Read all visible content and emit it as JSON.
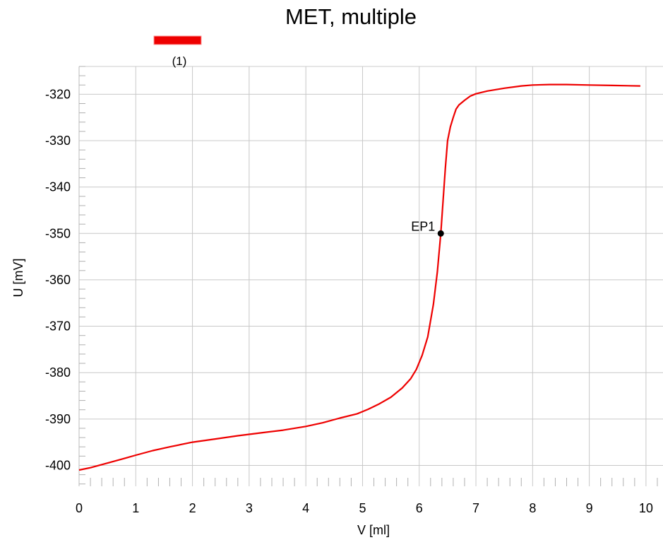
{
  "chart_data": {
    "type": "line",
    "title": "MET, multiple",
    "xlabel": "V [ml]",
    "ylabel": "U [mV]",
    "xlim": [
      0,
      10.3
    ],
    "ylim": [
      -404.5,
      -314
    ],
    "xticks": [
      0,
      1,
      2,
      3,
      4,
      5,
      6,
      7,
      8,
      9,
      10
    ],
    "yticks": [
      -400,
      -390,
      -380,
      -370,
      -360,
      -350,
      -340,
      -330,
      -320
    ],
    "grid": true,
    "legend_position": "top-left",
    "series": [
      {
        "name": "(1)",
        "color": "#ee0000",
        "x": [
          0,
          0.2,
          0.5,
          0.8,
          1.0,
          1.3,
          1.6,
          2.0,
          2.4,
          2.8,
          3.2,
          3.6,
          4.0,
          4.3,
          4.6,
          4.9,
          5.1,
          5.3,
          5.5,
          5.7,
          5.85,
          5.95,
          6.05,
          6.15,
          6.25,
          6.32,
          6.38,
          6.42,
          6.46,
          6.5,
          6.55,
          6.6,
          6.65,
          6.7,
          6.8,
          6.9,
          7.0,
          7.2,
          7.5,
          7.8,
          8.0,
          8.3,
          8.6,
          9.0,
          9.4,
          9.9
        ],
        "y": [
          -401,
          -400.5,
          -399.5,
          -398.5,
          -397.8,
          -396.8,
          -396,
          -395,
          -394.3,
          -393.6,
          -393,
          -392.4,
          -391.6,
          -390.8,
          -389.8,
          -388.9,
          -387.9,
          -386.7,
          -385.3,
          -383.3,
          -381.3,
          -379.3,
          -376.3,
          -372.3,
          -365.3,
          -358.3,
          -350,
          -343,
          -336,
          -330,
          -327,
          -325,
          -323.2,
          -322.3,
          -321.3,
          -320.4,
          -319.9,
          -319.3,
          -318.7,
          -318.2,
          -318.0,
          -317.9,
          -317.9,
          -318.0,
          -318.1,
          -318.2
        ]
      }
    ],
    "annotations": [
      {
        "label": "EP1",
        "x": 6.38,
        "y": -350
      }
    ]
  }
}
